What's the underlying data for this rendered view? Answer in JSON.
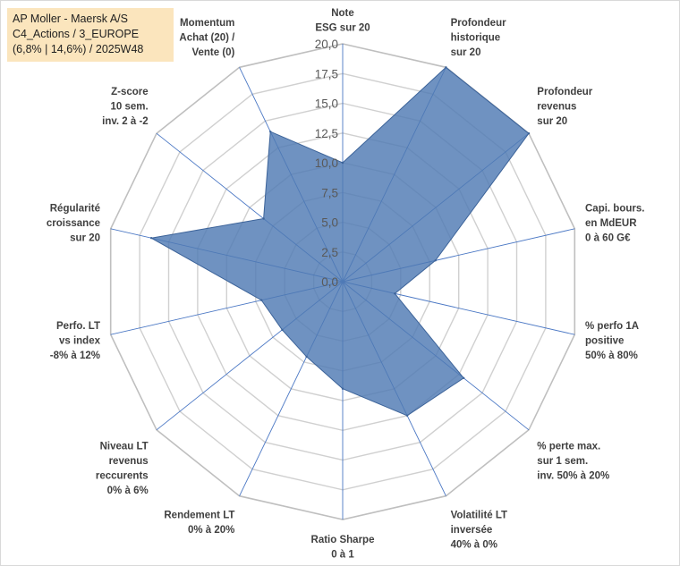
{
  "title_box": {
    "line1": "AP Moller - Maersk A/S",
    "line2": "C4_Actions / 3_EUROPE",
    "line3": "(6,8% | 14,6%) / 2025W48"
  },
  "colors": {
    "fill": "#4f7ab3",
    "fill_opacity": 0.82,
    "stroke": "#3c6399",
    "grid": "#d0d0d0",
    "spoke": "#4a77c4",
    "title_bg": "#fbe5bd"
  },
  "chart_data": {
    "type": "radar",
    "ylim": [
      0,
      20
    ],
    "tick_step": 2.5,
    "tick_labels": [
      "0,0",
      "2,5",
      "5,0",
      "7,5",
      "10,0",
      "12,5",
      "15,0",
      "17,5",
      "20,0"
    ],
    "grid": true,
    "categories": [
      [
        "Note",
        "ESG sur 20"
      ],
      [
        "Profondeur",
        "historique",
        "sur 20"
      ],
      [
        "Profondeur",
        "revenus",
        "sur 20"
      ],
      [
        "Capi. bours.",
        "en MdEUR",
        "0 à 60 G€"
      ],
      [
        "% perfo 1A",
        "positive",
        "50% à 80%"
      ],
      [
        "% perte max.",
        "sur 1 sem.",
        "inv. 50% à 20%"
      ],
      [
        "Volatilité LT",
        "inversée",
        "40% à 0%"
      ],
      [
        "Ratio Sharpe",
        "0 à 1"
      ],
      [
        "Rendement LT",
        "0% à 20%"
      ],
      [
        "Niveau LT",
        "revenus",
        "reccurents",
        "0% à 6%"
      ],
      [
        "Perfo. LT",
        "vs index",
        "-8% à 12%"
      ],
      [
        "Régularité",
        "croissance",
        "sur 20"
      ],
      [
        "Z-score",
        "10 sem.",
        "inv. 2 à -2"
      ],
      [
        "Momentum",
        "Achat (20) /",
        "Vente (0)"
      ]
    ],
    "values": [
      10.0,
      20.0,
      20.0,
      8.0,
      4.5,
      13.0,
      12.5,
      9.0,
      7.0,
      6.5,
      7.0,
      16.5,
      8.5,
      14.0
    ]
  }
}
